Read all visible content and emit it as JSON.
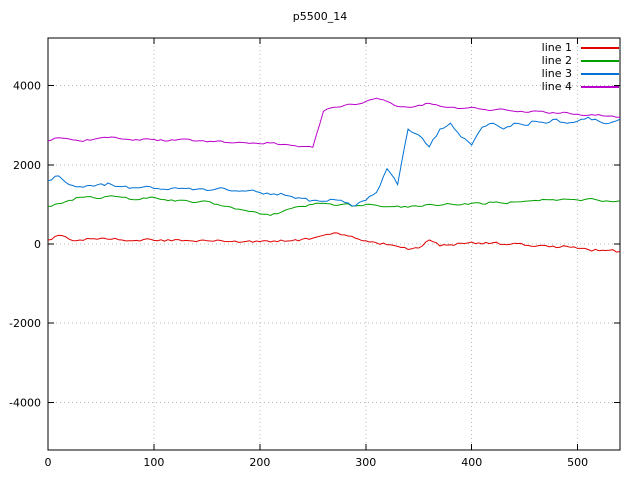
{
  "title": "p5500_14",
  "legend": {
    "position": "top-right-inside",
    "items": [
      {
        "label": "line 1",
        "color": "#e00000"
      },
      {
        "label": "line 2",
        "color": "#00a000"
      },
      {
        "label": "line 3",
        "color": "#0072d6"
      },
      {
        "label": "line 4",
        "color": "#bb00cc"
      }
    ]
  },
  "axes": {
    "x": {
      "min": 0,
      "max": 540,
      "ticks": [
        0,
        100,
        200,
        300,
        400,
        500
      ]
    },
    "y": {
      "min": -5200,
      "max": 5200,
      "ticks": [
        -4000,
        -2000,
        0,
        2000,
        4000
      ]
    }
  },
  "chart_data": {
    "type": "line",
    "title": "p5500_14",
    "xlabel": "",
    "ylabel": "",
    "xlim": [
      0,
      540
    ],
    "ylim": [
      -5200,
      5200
    ],
    "grid": "dotted",
    "legend_position": "top-right-inside",
    "x_start": 0,
    "x_step": 10,
    "series": [
      {
        "name": "line 1",
        "color": "#e00000",
        "noise": 30,
        "values": [
          100,
          220,
          120,
          100,
          130,
          150,
          120,
          100,
          80,
          110,
          90,
          70,
          110,
          90,
          60,
          80,
          100,
          60,
          40,
          80,
          60,
          50,
          100,
          80,
          120,
          150,
          220,
          280,
          230,
          150,
          80,
          30,
          -20,
          -60,
          -140,
          -100,
          100,
          -50,
          -20,
          20,
          50,
          0,
          30,
          -10,
          20,
          -30,
          -60,
          -40,
          -90,
          -60,
          -110,
          -140,
          -170,
          -160,
          -190
        ]
      },
      {
        "name": "line 2",
        "color": "#00a000",
        "noise": 25,
        "values": [
          950,
          1020,
          1100,
          1180,
          1200,
          1150,
          1220,
          1180,
          1120,
          1160,
          1180,
          1120,
          1080,
          1100,
          1050,
          1080,
          1000,
          950,
          880,
          820,
          760,
          720,
          800,
          900,
          950,
          1000,
          1030,
          980,
          1010,
          960,
          1000,
          980,
          940,
          960,
          930,
          950,
          1000,
          980,
          1010,
          990,
          1030,
          1010,
          1050,
          1030,
          1060,
          1080,
          1100,
          1120,
          1100,
          1130,
          1110,
          1140,
          1100,
          1080,
          1090
        ]
      },
      {
        "name": "line 3",
        "color": "#0072d6",
        "noise": 38,
        "values": [
          1600,
          1720,
          1500,
          1450,
          1480,
          1520,
          1500,
          1450,
          1420,
          1440,
          1400,
          1380,
          1420,
          1400,
          1380,
          1350,
          1400,
          1360,
          1330,
          1350,
          1300,
          1250,
          1280,
          1200,
          1150,
          1100,
          1080,
          1120,
          1050,
          960,
          1100,
          1300,
          1900,
          1500,
          2900,
          2750,
          2450,
          2900,
          3050,
          2700,
          2500,
          2950,
          3050,
          2900,
          3050,
          3000,
          3100,
          3050,
          3150,
          3050,
          3100,
          3200,
          3100,
          3050,
          3150
        ]
      },
      {
        "name": "line 4",
        "color": "#bb00cc",
        "noise": 22,
        "values": [
          2600,
          2680,
          2650,
          2600,
          2620,
          2680,
          2700,
          2650,
          2620,
          2650,
          2640,
          2600,
          2620,
          2650,
          2600,
          2580,
          2600,
          2560,
          2570,
          2540,
          2530,
          2550,
          2510,
          2490,
          2460,
          2440,
          3350,
          3450,
          3500,
          3520,
          3600,
          3680,
          3600,
          3470,
          3450,
          3500,
          3550,
          3480,
          3450,
          3420,
          3450,
          3400,
          3380,
          3400,
          3350,
          3330,
          3360,
          3320,
          3300,
          3320,
          3280,
          3250,
          3270,
          3230,
          3200
        ]
      }
    ]
  }
}
